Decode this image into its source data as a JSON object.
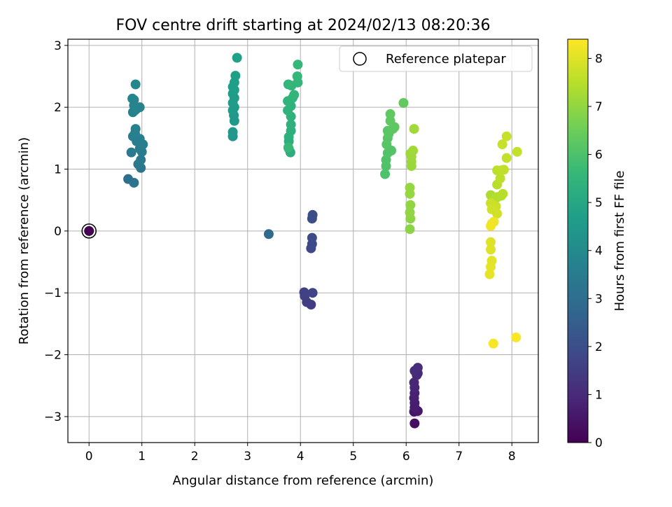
{
  "chart_data": {
    "type": "scatter",
    "title": "FOV centre drift starting at 2024/02/13 08:20:36",
    "xlabel": "Angular distance from reference (arcmin)",
    "ylabel": "Rotation from reference (arcmin)",
    "xlim": [
      -0.4,
      8.5
    ],
    "ylim": [
      -3.42,
      3.1
    ],
    "xticks": [
      0,
      1,
      2,
      3,
      4,
      5,
      6,
      7,
      8
    ],
    "yticks": [
      -3,
      -2,
      -1,
      0,
      1,
      2,
      3
    ],
    "xtick_labels": [
      "0",
      "1",
      "2",
      "3",
      "4",
      "5",
      "6",
      "7",
      "8"
    ],
    "ytick_labels": [
      "−3",
      "−2",
      "−1",
      "0",
      "1",
      "2",
      "3"
    ],
    "grid": true,
    "legend": {
      "placement": "upper right",
      "entries": [
        "Reference platepar"
      ]
    },
    "reference_point": {
      "label": "Reference platepar",
      "x": 0,
      "y": 0
    },
    "colorbar": {
      "label": "Hours from first FF file",
      "range": [
        0,
        8.4
      ],
      "ticks": [
        0,
        1,
        2,
        3,
        4,
        5,
        6,
        7,
        8
      ],
      "tick_labels": [
        "0",
        "1",
        "2",
        "3",
        "4",
        "5",
        "6",
        "7",
        "8"
      ],
      "colormap": "viridis"
    },
    "series": [
      {
        "points": [
          [
            0,
            0,
            0.0
          ],
          [
            6.16,
            -3.11,
            0.35
          ],
          [
            6.15,
            -2.92,
            0.45
          ],
          [
            6.22,
            -2.91,
            0.55
          ],
          [
            6.16,
            -2.85,
            0.65
          ],
          [
            6.16,
            -2.78,
            0.7
          ],
          [
            6.15,
            -2.7,
            0.75
          ],
          [
            6.16,
            -2.62,
            0.8
          ],
          [
            6.16,
            -2.53,
            0.85
          ],
          [
            6.15,
            -2.45,
            0.9
          ],
          [
            6.2,
            -2.33,
            0.95
          ],
          [
            6.22,
            -2.3,
            1.0
          ],
          [
            6.16,
            -2.26,
            1.05
          ],
          [
            6.22,
            -2.21,
            1.1
          ],
          [
            4.2,
            -1.19,
            1.5
          ],
          [
            4.12,
            -1.15,
            1.55
          ],
          [
            4.08,
            -1.05,
            1.6
          ],
          [
            4.07,
            -0.99,
            1.65
          ],
          [
            4.23,
            -1.0,
            1.7
          ],
          [
            4.2,
            -0.28,
            1.8
          ],
          [
            4.22,
            -0.21,
            1.85
          ],
          [
            4.22,
            -0.11,
            1.9
          ],
          [
            4.22,
            0.2,
            1.95
          ],
          [
            4.23,
            0.26,
            2.0
          ],
          [
            3.4,
            -0.05,
            2.9
          ],
          [
            0.74,
            0.84,
            3.1
          ],
          [
            0.85,
            0.78,
            3.2
          ],
          [
            0.98,
            1.02,
            3.3
          ],
          [
            0.93,
            1.08,
            3.35
          ],
          [
            0.98,
            1.15,
            3.4
          ],
          [
            0.8,
            1.27,
            3.45
          ],
          [
            1.0,
            1.28,
            3.5
          ],
          [
            0.96,
            1.33,
            3.5
          ],
          [
            1.02,
            1.4,
            3.55
          ],
          [
            0.9,
            1.45,
            3.6
          ],
          [
            0.96,
            1.49,
            3.6
          ],
          [
            0.83,
            1.53,
            3.6
          ],
          [
            0.87,
            1.58,
            3.65
          ],
          [
            0.88,
            1.65,
            3.65
          ],
          [
            0.83,
            1.92,
            3.7
          ],
          [
            0.87,
            1.95,
            3.7
          ],
          [
            0.91,
            1.98,
            3.75
          ],
          [
            0.96,
            2.0,
            3.75
          ],
          [
            0.85,
            2.03,
            3.8
          ],
          [
            0.85,
            2.12,
            3.8
          ],
          [
            0.82,
            2.14,
            3.8
          ],
          [
            0.88,
            2.37,
            3.85
          ],
          [
            2.72,
            1.53,
            4.4
          ],
          [
            2.72,
            1.6,
            4.45
          ],
          [
            2.75,
            1.78,
            4.5
          ],
          [
            2.74,
            1.87,
            4.5
          ],
          [
            2.72,
            1.95,
            4.55
          ],
          [
            2.75,
            2.0,
            4.55
          ],
          [
            2.72,
            2.07,
            4.6
          ],
          [
            2.75,
            2.15,
            4.6
          ],
          [
            2.72,
            2.22,
            4.6
          ],
          [
            2.75,
            2.28,
            4.65
          ],
          [
            2.72,
            2.33,
            4.65
          ],
          [
            2.75,
            2.4,
            4.7
          ],
          [
            2.77,
            2.51,
            4.7
          ],
          [
            2.8,
            2.8,
            4.75
          ],
          [
            3.81,
            1.27,
            5.2
          ],
          [
            3.78,
            1.33,
            5.25
          ],
          [
            3.78,
            1.45,
            5.25
          ],
          [
            3.78,
            1.52,
            5.3
          ],
          [
            3.82,
            1.62,
            5.3
          ],
          [
            3.82,
            1.72,
            5.35
          ],
          [
            3.82,
            1.85,
            5.35
          ],
          [
            3.76,
            1.95,
            5.4
          ],
          [
            3.82,
            2.02,
            5.4
          ],
          [
            3.76,
            2.1,
            5.45
          ],
          [
            3.85,
            2.15,
            5.45
          ],
          [
            3.88,
            2.2,
            5.5
          ],
          [
            3.77,
            2.37,
            5.5
          ],
          [
            3.83,
            2.35,
            5.55
          ],
          [
            3.95,
            2.4,
            5.55
          ],
          [
            3.94,
            2.5,
            5.6
          ],
          [
            3.95,
            2.69,
            5.6
          ],
          [
            3.77,
            1.35,
            5.65
          ],
          [
            5.6,
            0.92,
            6.0
          ],
          [
            5.62,
            1.05,
            6.05
          ],
          [
            5.62,
            1.15,
            6.05
          ],
          [
            5.65,
            1.26,
            6.1
          ],
          [
            5.72,
            1.3,
            6.1
          ],
          [
            5.63,
            1.4,
            6.15
          ],
          [
            5.65,
            1.5,
            6.15
          ],
          [
            5.67,
            1.57,
            6.2
          ],
          [
            5.65,
            1.62,
            6.2
          ],
          [
            5.75,
            1.65,
            6.25
          ],
          [
            5.78,
            1.68,
            6.25
          ],
          [
            5.7,
            1.78,
            6.3
          ],
          [
            5.7,
            1.89,
            6.3
          ],
          [
            5.95,
            2.07,
            6.35
          ],
          [
            6.07,
            0.03,
            6.9
          ],
          [
            6.08,
            0.2,
            6.95
          ],
          [
            6.07,
            0.3,
            7.0
          ],
          [
            6.08,
            0.42,
            7.0
          ],
          [
            6.07,
            0.6,
            7.05
          ],
          [
            6.07,
            0.7,
            7.05
          ],
          [
            6.1,
            1.05,
            7.1
          ],
          [
            6.1,
            1.12,
            7.1
          ],
          [
            6.1,
            1.2,
            7.15
          ],
          [
            6.08,
            1.25,
            7.15
          ],
          [
            6.13,
            1.3,
            7.2
          ],
          [
            6.15,
            1.65,
            7.2
          ],
          [
            7.6,
            0.58,
            7.35
          ],
          [
            7.73,
            0.55,
            7.4
          ],
          [
            7.68,
            0.52,
            7.45
          ],
          [
            7.8,
            0.57,
            7.45
          ],
          [
            7.83,
            0.6,
            7.5
          ],
          [
            7.72,
            0.75,
            7.5
          ],
          [
            7.78,
            0.85,
            7.55
          ],
          [
            7.72,
            0.98,
            7.55
          ],
          [
            7.8,
            0.98,
            7.6
          ],
          [
            7.85,
            0.99,
            7.6
          ],
          [
            7.9,
            1.18,
            7.65
          ],
          [
            8.1,
            1.28,
            7.65
          ],
          [
            7.82,
            1.4,
            7.7
          ],
          [
            7.9,
            1.53,
            7.7
          ],
          [
            7.6,
            0.45,
            7.75
          ],
          [
            7.7,
            0.4,
            7.75
          ],
          [
            7.62,
            0.35,
            7.8
          ],
          [
            7.72,
            0.28,
            7.8
          ],
          [
            7.6,
            -0.18,
            8.0
          ],
          [
            7.6,
            -0.3,
            8.0
          ],
          [
            7.62,
            -0.48,
            8.05
          ],
          [
            7.6,
            -0.58,
            8.1
          ],
          [
            7.58,
            -0.7,
            8.1
          ],
          [
            7.62,
            0.12,
            8.15
          ],
          [
            7.66,
            0.15,
            8.2
          ],
          [
            7.6,
            0.08,
            8.25
          ],
          [
            7.65,
            -1.82,
            8.3
          ],
          [
            8.08,
            -1.72,
            8.35
          ]
        ]
      }
    ]
  }
}
